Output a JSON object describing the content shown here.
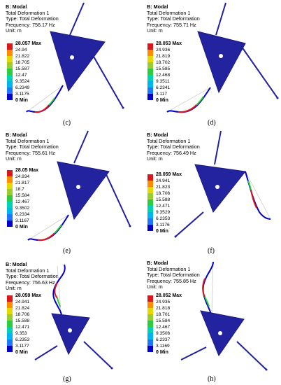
{
  "legend_colors": [
    "#d7191c",
    "#ff8c00",
    "#e6d800",
    "#9acd32",
    "#2ecc40",
    "#00d2b4",
    "#00b4f0",
    "#1e78ff",
    "#0000c8"
  ],
  "panels": [
    {
      "title": "B: Modal",
      "line1": "Total Deformation 1",
      "line2": "Type: Total Deformation",
      "line3": "Frequency: 756.17 Hz",
      "line4": "Unit: m",
      "legend": [
        "28.057 Max",
        "24.94",
        "21.822",
        "18.705",
        "15.587",
        "12.47",
        "9.3524",
        "6.2349",
        "3.1175",
        "0 Min"
      ],
      "caption": "(c)"
    },
    {
      "title": "B: Modal",
      "line1": "Total Deformation 1",
      "line2": "Type: Total Deformation",
      "line3": "Frequency: 755.71 Hz",
      "line4": "Unit: m",
      "legend": [
        "28.053 Max",
        "24.936",
        "21.819",
        "18.702",
        "15.585",
        "12.468",
        "9.3511",
        "6.2341",
        "3.117",
        "0 Min"
      ],
      "caption": "(d)"
    },
    {
      "title": "B: Modal",
      "line1": "Total Deformation 1",
      "line2": "Type: Total Deformation",
      "line3": "Frequency: 755.61 Hz",
      "line4": "Unit: m",
      "legend": [
        "28.05 Max",
        "24.934",
        "21.817",
        "18.7",
        "15.584",
        "12.467",
        "9.3502",
        "6.2334",
        "3.1167",
        "0 Min"
      ],
      "caption": "(e)"
    },
    {
      "title": "B: Modal",
      "line1": "Total Deformation 1",
      "line2": "Type: Total Deformation",
      "line3": "Frequency: 756.49 Hz",
      "line4": "Unit: m",
      "legend": [
        "28.059 Max",
        "24.941",
        "21.823",
        "18.706",
        "15.588",
        "12.471",
        "9.3529",
        "6.2353",
        "3.1176",
        "0 Min"
      ],
      "caption": "(f)"
    },
    {
      "title": "B: Modal",
      "line1": "Total Deformation 1",
      "line2": "Type: Total Deformation",
      "line3": "Frequency: 756.63 Hz",
      "line4": "Unit: m",
      "legend": [
        "28.059 Max",
        "24.941",
        "21.824",
        "18.706",
        "15.588",
        "12.471",
        "9.353",
        "6.2353",
        "3.1177",
        "0 Min"
      ],
      "caption": "(g)"
    },
    {
      "title": "B: Modal",
      "line1": "Total Deformation 1",
      "line2": "Type: Total Deformation",
      "line3": "Frequency: 755.85 Hz",
      "line4": "Unit: m",
      "legend": [
        "28.052 Max",
        "24.935",
        "21.818",
        "18.701",
        "15.584",
        "12.467",
        "9.3506",
        "6.2337",
        "3.1169",
        "0 Min"
      ],
      "caption": "(h)"
    }
  ]
}
